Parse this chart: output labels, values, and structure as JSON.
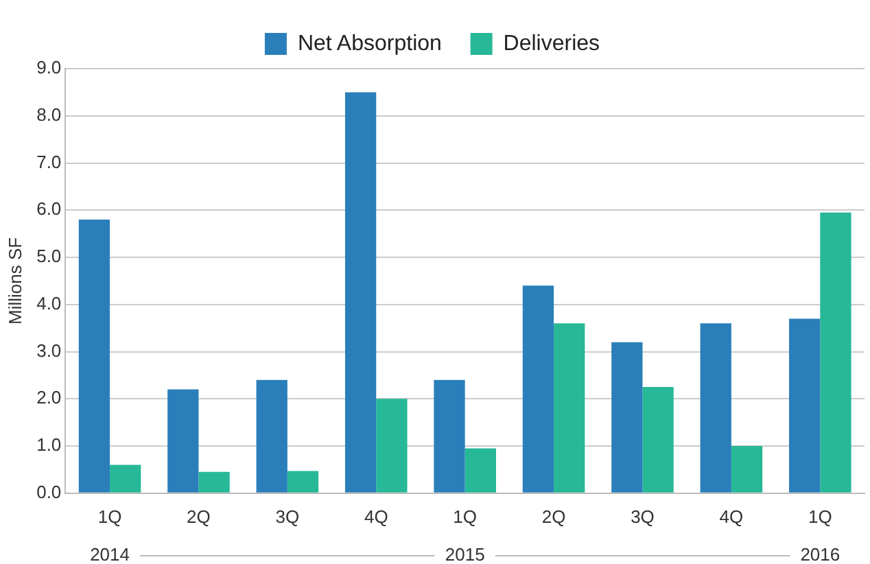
{
  "chart_data": {
    "type": "bar",
    "ylabel": "Millions SF",
    "categories": [
      "1Q",
      "2Q",
      "3Q",
      "4Q",
      "1Q",
      "2Q",
      "3Q",
      "4Q",
      "1Q"
    ],
    "series": [
      {
        "name": "Net Absorption",
        "color": "#2a7fba",
        "values": [
          5.8,
          2.2,
          2.4,
          8.5,
          2.4,
          4.4,
          3.2,
          3.6,
          3.7
        ]
      },
      {
        "name": "Deliveries",
        "color": "#27b897",
        "values": [
          0.6,
          0.45,
          0.47,
          2.0,
          0.95,
          3.6,
          2.25,
          1.0,
          5.95
        ]
      }
    ],
    "annotations": [
      "2014",
      "2015",
      "2016"
    ],
    "ylim": [
      0,
      9
    ],
    "yticks": [
      {
        "value": 0,
        "label": "0.0"
      },
      {
        "value": 1,
        "label": "1.0"
      },
      {
        "value": 2,
        "label": "2.0"
      },
      {
        "value": 3,
        "label": "3.0"
      },
      {
        "value": 4,
        "label": "4.0"
      },
      {
        "value": 5,
        "label": "5.0"
      },
      {
        "value": 6,
        "label": "6.0"
      },
      {
        "value": 7,
        "label": "7.0"
      },
      {
        "value": 8,
        "label": "8.0"
      },
      {
        "value": 9,
        "label": "9.0"
      }
    ],
    "grid": "y",
    "legend": "top"
  }
}
